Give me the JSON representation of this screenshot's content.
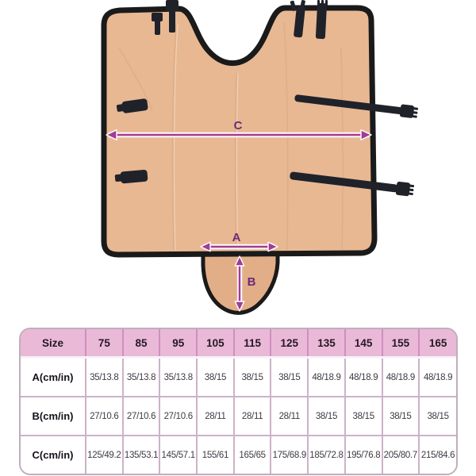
{
  "figure": {
    "measure_labels": {
      "a": "A",
      "b": "B",
      "c": "C"
    },
    "colors": {
      "fabric": "#e8b893",
      "flap": "#e2ae88",
      "trim": "#1a1a1a",
      "strap": "#20222a",
      "arrow": "#a23b96",
      "arrow_label": "#6d2a74"
    }
  },
  "size_table": {
    "columns": [
      "Size",
      "75",
      "85",
      "95",
      "105",
      "115",
      "125",
      "135",
      "145",
      "155",
      "165"
    ],
    "rows": [
      {
        "label": "A(cm/in)",
        "values": [
          "35/13.8",
          "35/13.8",
          "35/13.8",
          "38/15",
          "38/15",
          "38/15",
          "48/18.9",
          "48/18.9",
          "48/18.9",
          "48/18.9"
        ]
      },
      {
        "label": "B(cm/in)",
        "values": [
          "27/10.6",
          "27/10.6",
          "27/10.6",
          "28/11",
          "28/11",
          "28/11",
          "38/15",
          "38/15",
          "38/15",
          "38/15"
        ]
      },
      {
        "label": "C(cm/in)",
        "values": [
          "125/49.2",
          "135/53.1",
          "145/57.1",
          "155/61",
          "165/65",
          "175/68.9",
          "185/72.8",
          "195/76.8",
          "205/80.7",
          "215/84.6"
        ]
      }
    ],
    "colors": {
      "header_bg": "#eab9d7",
      "header_divider": "#cf8ec0",
      "grid": "#cdb2c8",
      "border": "#bfaebb",
      "header_text": "#241824",
      "value_text": "#3f3945"
    }
  }
}
